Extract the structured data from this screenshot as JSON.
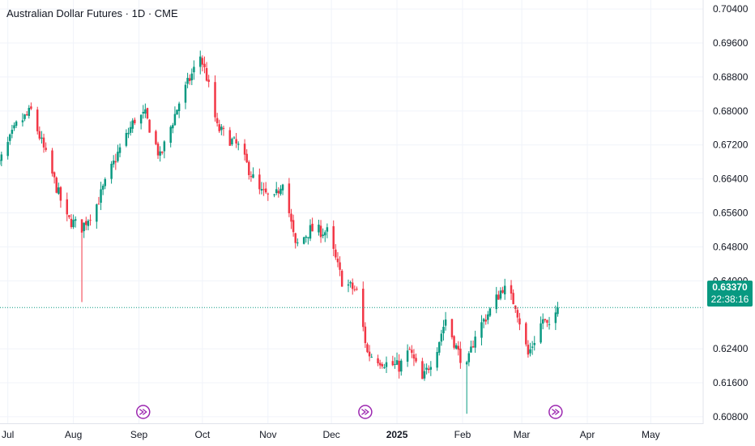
{
  "header": {
    "title": "Australian Dollar Futures · 1D · CME"
  },
  "last_price": {
    "value": "0.63370",
    "countdown": "22:38:16",
    "color": "#089981"
  },
  "colors": {
    "up": "#089981",
    "down": "#f23645",
    "event": "#9c27b0",
    "grid": "#f0f3fa",
    "price_line": "#089981"
  },
  "events": [
    {
      "icon": "dividend-arrow-icon",
      "date": "2024-09-03"
    },
    {
      "icon": "dividend-arrow-icon",
      "date": "2024-12-17"
    },
    {
      "icon": "dividend-arrow-icon",
      "date": "2025-03-17"
    }
  ],
  "chart_data": {
    "type": "candlestick",
    "title": "Australian Dollar Futures · 1D · CME",
    "x_tick_labels": [
      "Jul",
      "Aug",
      "Sep",
      "Oct",
      "Nov",
      "Dec",
      "2025",
      "Feb",
      "Mar",
      "Apr",
      "May"
    ],
    "y_tick_labels": [
      "0.70400",
      "0.69600",
      "0.68800",
      "0.68000",
      "0.67200",
      "0.66400",
      "0.65600",
      "0.64800",
      "0.64000",
      "0.62400",
      "0.61600",
      "0.60800"
    ],
    "ylim": [
      0.6055,
      0.7045
    ],
    "xlim": [
      "2024-06-25",
      "2025-05-25"
    ],
    "grid": true,
    "anchors": [
      [
        "2024-06-25",
        0.6655
      ],
      [
        "2024-07-05",
        0.6765
      ],
      [
        "2024-07-12",
        0.68
      ],
      [
        "2024-07-22",
        0.665
      ],
      [
        "2024-07-29",
        0.6545
      ],
      [
        "2024-08-05",
        0.6525
      ],
      [
        "2024-08-12",
        0.658
      ],
      [
        "2024-08-22",
        0.67
      ],
      [
        "2024-08-30",
        0.678
      ],
      [
        "2024-09-04",
        0.679
      ],
      [
        "2024-09-11",
        0.669
      ],
      [
        "2024-09-20",
        0.682
      ],
      [
        "2024-09-30",
        0.693
      ],
      [
        "2024-10-03",
        0.688
      ],
      [
        "2024-10-08",
        0.676
      ],
      [
        "2024-10-18",
        0.6715
      ],
      [
        "2024-10-28",
        0.661
      ],
      [
        "2024-11-04",
        0.659
      ],
      [
        "2024-11-08",
        0.664
      ],
      [
        "2024-11-14",
        0.648
      ],
      [
        "2024-11-21",
        0.652
      ],
      [
        "2024-11-29",
        0.6515
      ],
      [
        "2024-12-06",
        0.64
      ],
      [
        "2024-12-13",
        0.6375
      ],
      [
        "2024-12-18",
        0.623
      ],
      [
        "2024-12-27",
        0.6205
      ],
      [
        "2025-01-02",
        0.6198
      ],
      [
        "2025-01-07",
        0.6235
      ],
      [
        "2025-01-13",
        0.6165
      ],
      [
        "2025-01-20",
        0.6245
      ],
      [
        "2025-01-24",
        0.631
      ],
      [
        "2025-01-30",
        0.623
      ],
      [
        "2025-02-03",
        0.6195
      ],
      [
        "2025-02-07",
        0.6275
      ],
      [
        "2025-02-14",
        0.633
      ],
      [
        "2025-02-20",
        0.6385
      ],
      [
        "2025-02-26",
        0.6345
      ],
      [
        "2025-03-04",
        0.6225
      ],
      [
        "2025-03-11",
        0.631
      ],
      [
        "2025-03-14",
        0.6285
      ],
      [
        "2025-03-18",
        0.6337
      ]
    ],
    "extremes": [
      {
        "date": "2024-08-05",
        "low": 0.635
      },
      {
        "date": "2024-09-30",
        "high": 0.6942
      },
      {
        "date": "2025-02-03",
        "low": 0.6087
      }
    ]
  }
}
